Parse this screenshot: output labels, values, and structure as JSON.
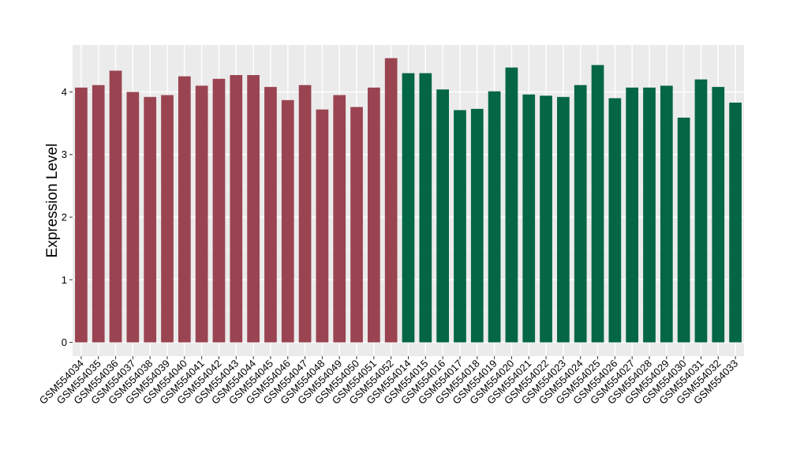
{
  "chart_data": {
    "type": "bar",
    "title": "",
    "xlabel": "",
    "ylabel": "Expression Level",
    "ylim": [
      -0.22,
      4.75
    ],
    "yticks": [
      0,
      1,
      2,
      3,
      4
    ],
    "grid": true,
    "background": "#ebebeb",
    "categories": [
      "GSM554034",
      "GSM554035",
      "GSM554036",
      "GSM554037",
      "GSM554038",
      "GSM554039",
      "GSM554040",
      "GSM554041",
      "GSM554042",
      "GSM554043",
      "GSM554044",
      "GSM554045",
      "GSM554046",
      "GSM554047",
      "GSM554048",
      "GSM554049",
      "GSM554050",
      "GSM554051",
      "GSM554052",
      "GSM554014",
      "GSM554015",
      "GSM554016",
      "GSM554017",
      "GSM554018",
      "GSM554019",
      "GSM554020",
      "GSM554021",
      "GSM554022",
      "GSM554023",
      "GSM554024",
      "GSM554025",
      "GSM554026",
      "GSM554027",
      "GSM554028",
      "GSM554029",
      "GSM554030",
      "GSM554031",
      "GSM554032",
      "GSM554033"
    ],
    "values": [
      4.07,
      4.11,
      4.34,
      4.0,
      3.92,
      3.95,
      4.25,
      4.1,
      4.21,
      4.27,
      4.27,
      4.08,
      3.87,
      4.11,
      3.72,
      3.95,
      3.76,
      4.07,
      4.54,
      4.3,
      4.3,
      4.04,
      3.71,
      3.73,
      4.01,
      4.39,
      3.96,
      3.94,
      3.92,
      4.11,
      4.43,
      3.9,
      4.07,
      4.07,
      4.1,
      3.59,
      4.2,
      4.08,
      3.83
    ],
    "groups": [
      {
        "count": 19,
        "color": "#9a4452"
      },
      {
        "count": 20,
        "color": "#046644"
      }
    ]
  }
}
